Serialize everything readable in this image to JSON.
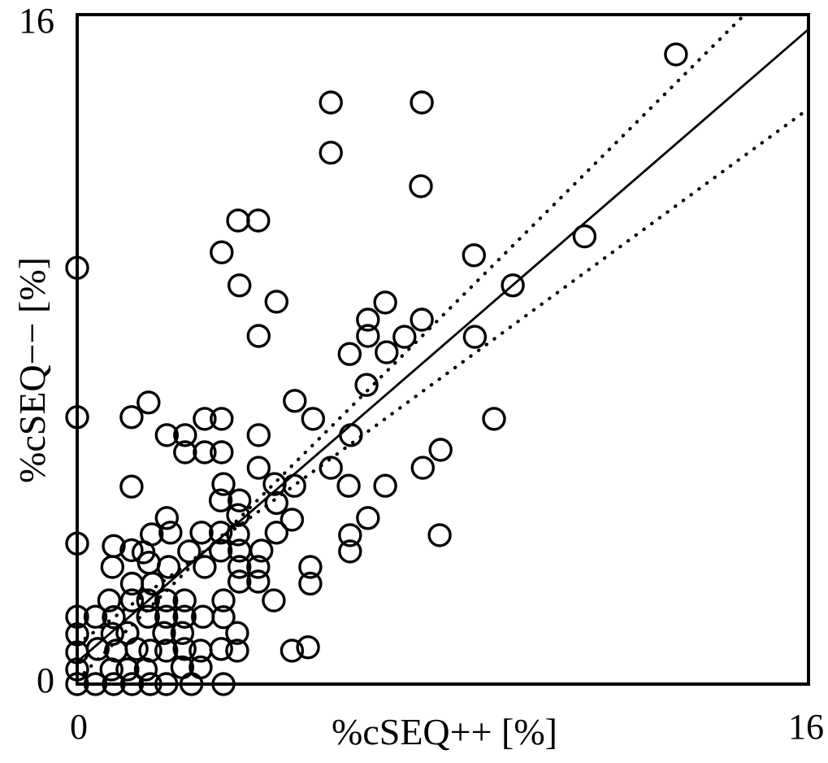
{
  "figure": {
    "background_color": "#ffffff",
    "foreground_color": "#000000"
  },
  "chart_data": {
    "type": "scatter",
    "title": "",
    "xlabel": "%cSEQ++ [%]",
    "ylabel": "%cSEQ−− [%]",
    "xlim": [
      0,
      16
    ],
    "ylim": [
      0,
      16
    ],
    "x_tick_labels": [
      "0",
      "16"
    ],
    "y_tick_labels": [
      "0",
      "16"
    ],
    "grid": false,
    "legend": "none",
    "frame": "full-box",
    "marker": {
      "shape": "open-circle",
      "stroke_color": "#000000",
      "fill": "none"
    },
    "points": [
      [
        0,
        0
      ],
      [
        0,
        0.35
      ],
      [
        0,
        0.76
      ],
      [
        0,
        1.19
      ],
      [
        0,
        1.61
      ],
      [
        0,
        3.36
      ],
      [
        0,
        6.38
      ],
      [
        0,
        9.95
      ],
      [
        0.4,
        0
      ],
      [
        0.8,
        0
      ],
      [
        1.2,
        0
      ],
      [
        1.6,
        0
      ],
      [
        1.95,
        0
      ],
      [
        2.5,
        0
      ],
      [
        3.2,
        0
      ],
      [
        0.75,
        0.35
      ],
      [
        1.1,
        0.35
      ],
      [
        1.5,
        0.35
      ],
      [
        2.3,
        0.4
      ],
      [
        2.7,
        0.4
      ],
      [
        0.45,
        0.84
      ],
      [
        0.85,
        0.8
      ],
      [
        1.3,
        0.84
      ],
      [
        1.6,
        0.8
      ],
      [
        1.95,
        0.8
      ],
      [
        2.35,
        0.84
      ],
      [
        2.7,
        0.8
      ],
      [
        3.15,
        0.84
      ],
      [
        3.5,
        0.8
      ],
      [
        4.7,
        0.8
      ],
      [
        5.05,
        0.88
      ],
      [
        0.77,
        1.2
      ],
      [
        1.1,
        1.22
      ],
      [
        1.9,
        1.22
      ],
      [
        2.3,
        1.22
      ],
      [
        3.5,
        1.22
      ],
      [
        0.4,
        1.61
      ],
      [
        0.8,
        1.6
      ],
      [
        1.55,
        1.61
      ],
      [
        1.95,
        1.61
      ],
      [
        2.35,
        1.61
      ],
      [
        2.75,
        1.61
      ],
      [
        3.2,
        1.6
      ],
      [
        0.7,
        2.0
      ],
      [
        1.2,
        2.0
      ],
      [
        1.55,
        2.0
      ],
      [
        1.95,
        2.0
      ],
      [
        2.35,
        2.0
      ],
      [
        3.2,
        2.0
      ],
      [
        4.3,
        2.0
      ],
      [
        1.2,
        2.4
      ],
      [
        1.65,
        2.4
      ],
      [
        3.55,
        2.45
      ],
      [
        3.96,
        2.45
      ],
      [
        5.1,
        2.4
      ],
      [
        0.77,
        2.8
      ],
      [
        1.57,
        2.9
      ],
      [
        2.0,
        2.8
      ],
      [
        2.79,
        2.8
      ],
      [
        3.55,
        2.8
      ],
      [
        3.96,
        2.8
      ],
      [
        5.1,
        2.8
      ],
      [
        0.8,
        3.3
      ],
      [
        1.19,
        3.2
      ],
      [
        1.45,
        3.15
      ],
      [
        2.45,
        3.17
      ],
      [
        3.14,
        3.19
      ],
      [
        3.55,
        3.19
      ],
      [
        4.03,
        3.19
      ],
      [
        5.97,
        3.17
      ],
      [
        1.63,
        3.58
      ],
      [
        2.04,
        3.62
      ],
      [
        2.72,
        3.62
      ],
      [
        3.14,
        3.62
      ],
      [
        3.52,
        3.58
      ],
      [
        4.36,
        3.62
      ],
      [
        5.97,
        3.56
      ],
      [
        7.93,
        3.56
      ],
      [
        1.96,
        3.97
      ],
      [
        3.52,
        4.04
      ],
      [
        4.7,
        3.93
      ],
      [
        6.36,
        3.97
      ],
      [
        3.14,
        4.39
      ],
      [
        3.55,
        4.39
      ],
      [
        4.36,
        4.33
      ],
      [
        1.19,
        4.72
      ],
      [
        3.2,
        4.78
      ],
      [
        4.32,
        4.78
      ],
      [
        4.75,
        4.74
      ],
      [
        5.94,
        4.74
      ],
      [
        6.74,
        4.74
      ],
      [
        3.97,
        5.17
      ],
      [
        5.55,
        5.17
      ],
      [
        7.56,
        5.17
      ],
      [
        2.36,
        5.54
      ],
      [
        2.79,
        5.54
      ],
      [
        3.16,
        5.54
      ],
      [
        7.95,
        5.6
      ],
      [
        1.96,
        5.95
      ],
      [
        2.36,
        5.95
      ],
      [
        3.97,
        5.95
      ],
      [
        5.99,
        5.95
      ],
      [
        1.19,
        6.38
      ],
      [
        2.79,
        6.34
      ],
      [
        3.16,
        6.34
      ],
      [
        5.16,
        6.34
      ],
      [
        9.12,
        6.34
      ],
      [
        1.56,
        6.73
      ],
      [
        4.76,
        6.77
      ],
      [
        6.33,
        7.15
      ],
      [
        5.96,
        7.89
      ],
      [
        6.77,
        7.93
      ],
      [
        3.97,
        8.32
      ],
      [
        6.36,
        8.32
      ],
      [
        7.16,
        8.3
      ],
      [
        8.7,
        8.3
      ],
      [
        6.36,
        8.71
      ],
      [
        7.54,
        8.71
      ],
      [
        4.36,
        9.14
      ],
      [
        6.74,
        9.12
      ],
      [
        3.55,
        9.53
      ],
      [
        9.53,
        9.53
      ],
      [
        3.16,
        10.32
      ],
      [
        8.68,
        10.25
      ],
      [
        11.1,
        10.7
      ],
      [
        3.52,
        11.08
      ],
      [
        3.96,
        11.08
      ],
      [
        7.52,
        11.9
      ],
      [
        5.55,
        12.7
      ],
      [
        5.55,
        13.9
      ],
      [
        7.54,
        13.9
      ],
      [
        13.1,
        15.05
      ]
    ],
    "lines": [
      {
        "name": "regression-line",
        "style": "solid",
        "x1": 0,
        "y1": 0.53,
        "x2": 16,
        "y2": 15.65
      },
      {
        "name": "upper-confidence-line",
        "style": "dotted",
        "x1": 0,
        "y1": 0.1,
        "x2": 14.6,
        "y2": 16.0
      },
      {
        "name": "lower-confidence-line",
        "style": "dotted",
        "x1": 0,
        "y1": 0.95,
        "x2": 16,
        "y2": 13.75
      }
    ]
  }
}
